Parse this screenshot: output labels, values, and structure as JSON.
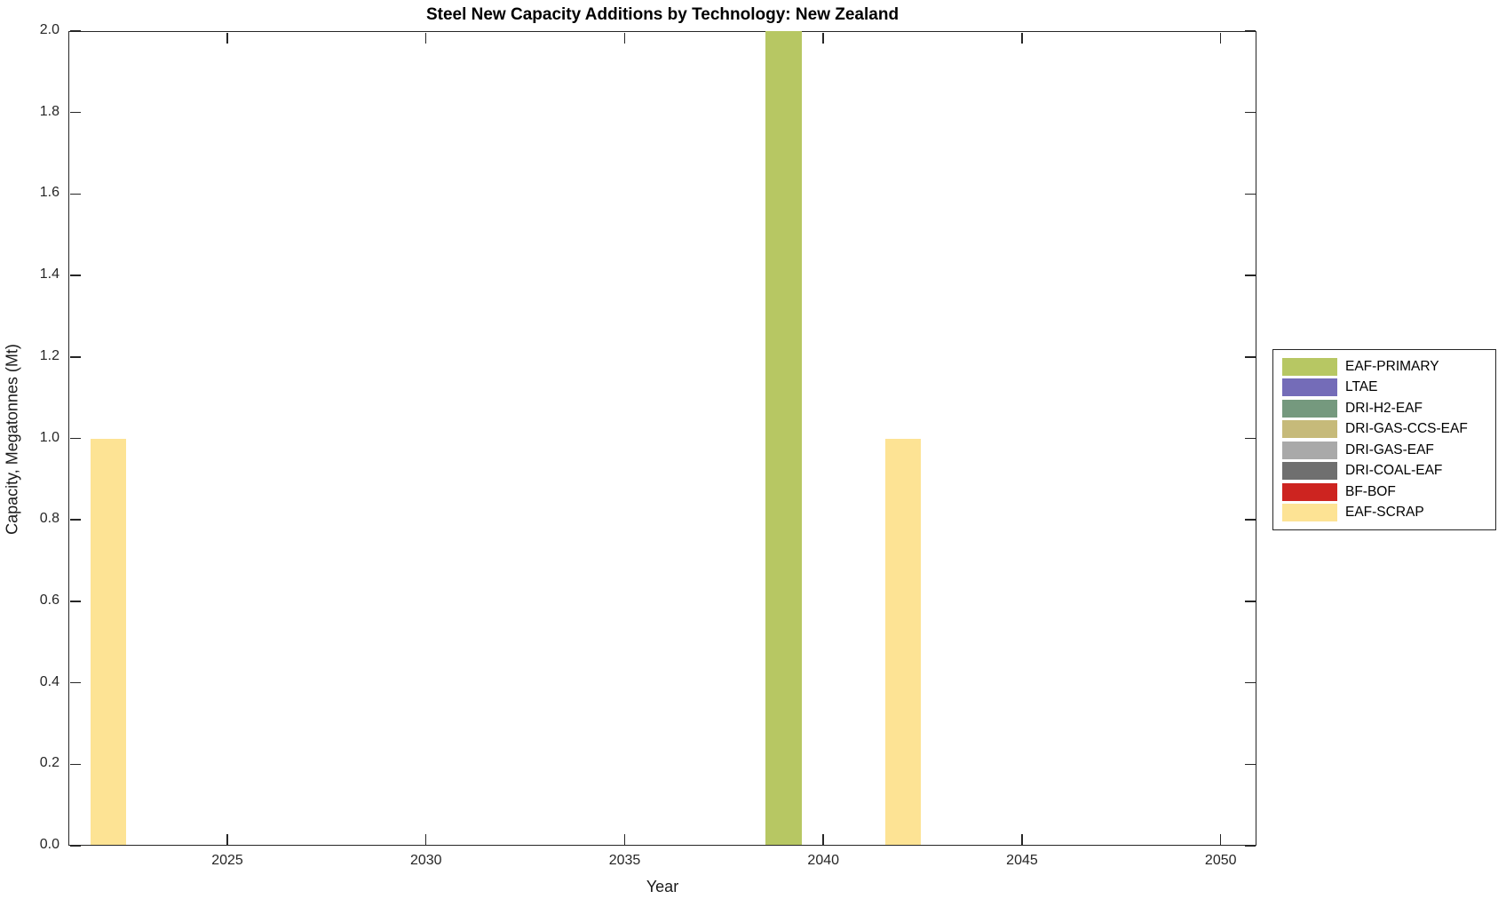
{
  "figure": {
    "background_color": "#ffffff",
    "axis_color": "#262626",
    "text_color": "#000000"
  },
  "chart_data": {
    "type": "bar",
    "title": "Steel New Capacity Additions by Technology: New Zealand",
    "xlabel": "Year",
    "ylabel": "Capacity, Megatonnes (Mt)",
    "xlim": [
      2021.0,
      2050.9
    ],
    "ylim": [
      0,
      2
    ],
    "xticks": [
      2025,
      2030,
      2035,
      2040,
      2045,
      2050
    ],
    "yticks": [
      0.0,
      0.2,
      0.4,
      0.6,
      0.8,
      1.0,
      1.2,
      1.4,
      1.6,
      1.8,
      2.0
    ],
    "ytick_decimals": 1,
    "grid": false,
    "box": true,
    "tick_direction": "in",
    "bar_width_years": 0.9,
    "legend_position": "outside-right",
    "series": [
      {
        "name": "EAF-PRIMARY",
        "color": "#b7c763",
        "points": [
          {
            "x": 2039,
            "y": 2.0
          }
        ]
      },
      {
        "name": "LTAE",
        "color": "#746cb8",
        "points": []
      },
      {
        "name": "DRI-H2-EAF",
        "color": "#75997e",
        "points": []
      },
      {
        "name": "DRI-GAS-CCS-EAF",
        "color": "#c6ba7a",
        "points": []
      },
      {
        "name": "DRI-GAS-EAF",
        "color": "#a9a9a9",
        "points": []
      },
      {
        "name": "DRI-COAL-EAF",
        "color": "#6f6f6f",
        "points": []
      },
      {
        "name": "BF-BOF",
        "color": "#cd2420",
        "points": []
      },
      {
        "name": "EAF-SCRAP",
        "color": "#fde394",
        "points": [
          {
            "x": 2022,
            "y": 1.0
          },
          {
            "x": 2042,
            "y": 1.0
          }
        ]
      }
    ]
  }
}
